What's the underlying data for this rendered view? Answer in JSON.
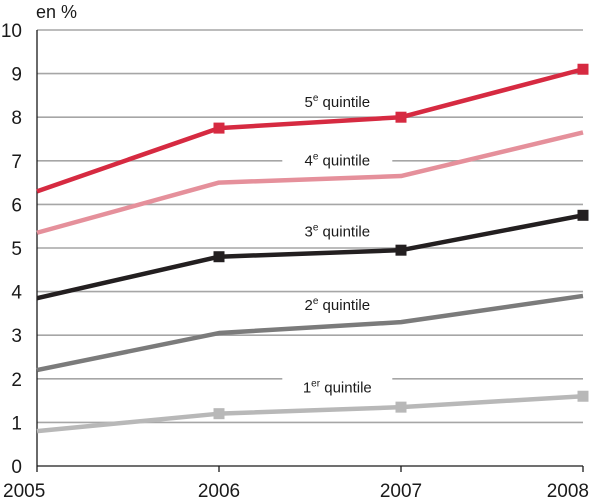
{
  "chart_data": {
    "type": "line",
    "ylabel": "en %",
    "x": [
      "2005",
      "2006",
      "2007",
      "2008"
    ],
    "ylim": [
      0,
      10
    ],
    "yticks": [
      "0",
      "1",
      "2",
      "3",
      "4",
      "5",
      "6",
      "7",
      "8",
      "9",
      "10"
    ],
    "grid": true,
    "series": [
      {
        "name": "5e quintile",
        "label_num": "5",
        "label_sup": "e",
        "label_text": "quintile",
        "values": [
          6.3,
          7.75,
          8.0,
          9.1
        ],
        "color": "#d62a41",
        "markers": true
      },
      {
        "name": "4e quintile",
        "label_num": "4",
        "label_sup": "e",
        "label_text": "quintile",
        "values": [
          5.35,
          6.5,
          6.65,
          7.65
        ],
        "color": "#e5909b",
        "markers": false
      },
      {
        "name": "3e quintile",
        "label_num": "3",
        "label_sup": "e",
        "label_text": "quintile",
        "values": [
          3.85,
          4.8,
          4.95,
          5.75
        ],
        "color": "#231f20",
        "markers": true
      },
      {
        "name": "2e quintile",
        "label_num": "2",
        "label_sup": "e",
        "label_text": "quintile",
        "values": [
          2.2,
          3.05,
          3.3,
          3.9
        ],
        "color": "#7b7b7b",
        "markers": false
      },
      {
        "name": "1er quintile",
        "label_num": "1",
        "label_sup": "er",
        "label_text": "quintile",
        "values": [
          0.8,
          1.2,
          1.35,
          1.6
        ],
        "color": "#b8b8b8",
        "markers": true
      }
    ]
  }
}
